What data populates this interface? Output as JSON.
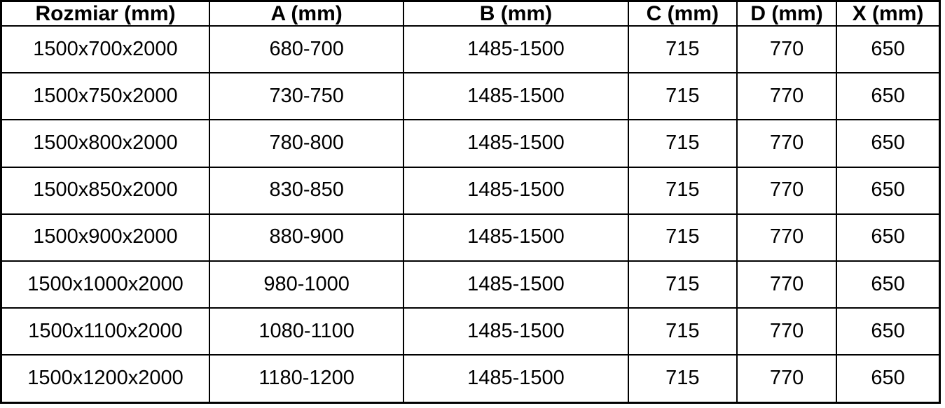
{
  "table": {
    "columns": [
      {
        "key": "rozmiar",
        "label": "Rozmiar (mm)"
      },
      {
        "key": "a",
        "label": "A (mm)"
      },
      {
        "key": "b",
        "label": "B (mm)"
      },
      {
        "key": "c",
        "label": "C (mm)"
      },
      {
        "key": "d",
        "label": "D (mm)"
      },
      {
        "key": "x",
        "label": "X (mm)"
      }
    ],
    "rows": [
      [
        "1500x700x2000",
        "680-700",
        "1485-1500",
        "715",
        "770",
        "650"
      ],
      [
        "1500x750x2000",
        "730-750",
        "1485-1500",
        "715",
        "770",
        "650"
      ],
      [
        "1500x800x2000",
        "780-800",
        "1485-1500",
        "715",
        "770",
        "650"
      ],
      [
        "1500x850x2000",
        "830-850",
        "1485-1500",
        "715",
        "770",
        "650"
      ],
      [
        "1500x900x2000",
        "880-900",
        "1485-1500",
        "715",
        "770",
        "650"
      ],
      [
        "1500x1000x2000",
        "980-1000",
        "1485-1500",
        "715",
        "770",
        "650"
      ],
      [
        "1500x1100x2000",
        "1080-1100",
        "1485-1500",
        "715",
        "770",
        "650"
      ],
      [
        "1500x1200x2000",
        "1180-1200",
        "1485-1500",
        "715",
        "770",
        "650"
      ]
    ],
    "colors": {
      "border": "#000000",
      "text": "#000000",
      "background": "#ffffff"
    }
  }
}
